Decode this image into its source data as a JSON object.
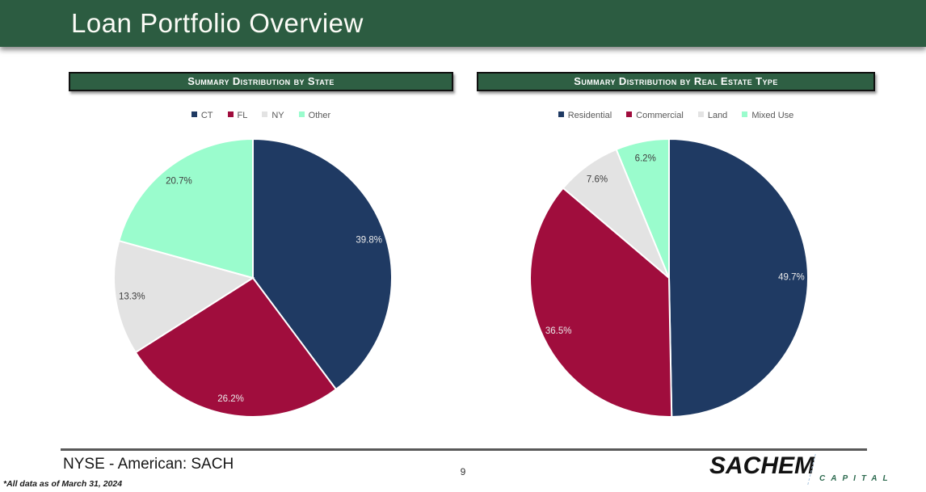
{
  "header": {
    "title": "Loan Portfolio Overview"
  },
  "chart_data": [
    {
      "type": "pie",
      "title": "Summary Distribution by State",
      "categories": [
        "CT",
        "FL",
        "NY",
        "Other"
      ],
      "values": [
        39.8,
        26.2,
        13.3,
        20.7
      ],
      "data_labels": [
        "39.8%",
        "26.2%",
        "13.3%",
        "20.7%"
      ],
      "colors": [
        "#1f3a63",
        "#a00d3d",
        "#e3e3e3",
        "#9afccd"
      ],
      "data_label_colors": [
        "#eaeaea",
        "#eaeaea",
        "#404040",
        "#404040"
      ],
      "legend_position": "top",
      "start_angle_deg": 0,
      "direction": "clockwise"
    },
    {
      "type": "pie",
      "title": "Summary Distribution by Real Estate Type",
      "categories": [
        "Residential",
        "Commercial",
        "Land",
        "Mixed Use"
      ],
      "values": [
        49.7,
        36.5,
        7.6,
        6.2
      ],
      "data_labels": [
        "49.7%",
        "36.5%",
        "7.6%",
        "6.2%"
      ],
      "colors": [
        "#1f3a63",
        "#a00d3d",
        "#e3e3e3",
        "#9afccd"
      ],
      "data_label_colors": [
        "#eaeaea",
        "#eaeaea",
        "#404040",
        "#404040"
      ],
      "legend_position": "top",
      "start_angle_deg": 0,
      "direction": "clockwise"
    }
  ],
  "footer": {
    "ticker": "NYSE - American: SACH",
    "page_number": "9",
    "footnote": "*All data as of March 31, 2024",
    "logo_primary": "SACHEM",
    "logo_secondary": "CAPITAL"
  },
  "theme": {
    "header_green": "#2c5c41",
    "panel_bar_green": "#2e5f43",
    "logo_green": "#2d6a4f",
    "navy": "#1f3a63",
    "crimson": "#a00d3d",
    "light_gray": "#e3e3e3",
    "mint": "#9afccd",
    "legend_text": "#595959"
  }
}
